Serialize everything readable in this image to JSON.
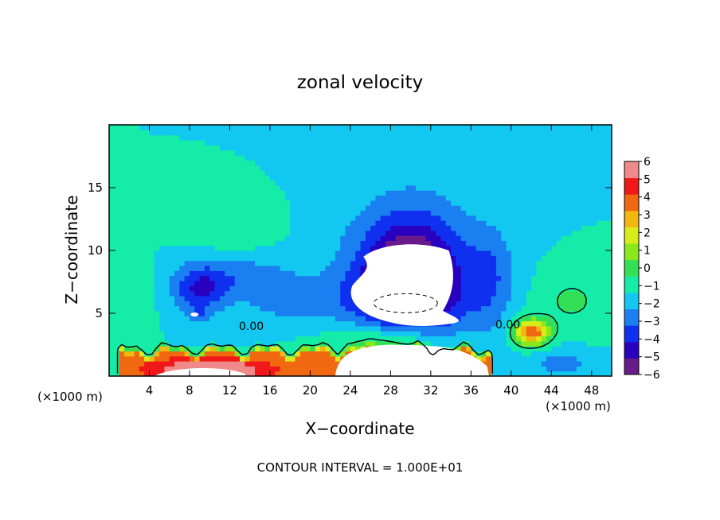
{
  "chart_data": {
    "type": "heatmap",
    "title": "zonal velocity",
    "xlabel": "X−coordinate",
    "ylabel": "Z−coordinate",
    "x_unit": "(×1000 m)",
    "y_unit": "(×1000 m)",
    "xlim": [
      0,
      50
    ],
    "ylim": [
      0,
      20
    ],
    "xticks": [
      4,
      8,
      12,
      16,
      20,
      24,
      28,
      32,
      36,
      40,
      44,
      48
    ],
    "yticks": [
      5,
      10,
      15
    ],
    "contour_labels": [
      "0.00",
      "0.00"
    ],
    "contour_interval_text": "CONTOUR INTERVAL = 1.000E+01",
    "colorbar": {
      "levels": [
        -6,
        -5,
        -4,
        -3,
        -2,
        -1,
        0,
        1,
        2,
        3,
        4,
        5,
        6
      ],
      "tick_labels": [
        "6",
        "5",
        "4",
        "3",
        "2",
        "1",
        "0",
        "−1",
        "−2",
        "−3",
        "−4",
        "−5",
        "−6"
      ],
      "colors": [
        "#6a1b8a",
        "#2a00c0",
        "#1030f0",
        "#1a7ff0",
        "#12c8f0",
        "#14eca8",
        "#33e055",
        "#88e81a",
        "#d8ec1a",
        "#f0b810",
        "#f06810",
        "#f01818",
        "#f08a8a"
      ]
    },
    "fields": [
      {
        "kind": "background",
        "value": -1.0
      },
      {
        "kind": "blob",
        "x": 30,
        "z": 7.5,
        "rx": 8.5,
        "rz": 7.5,
        "value": -3.0
      },
      {
        "kind": "blob",
        "x": 30,
        "z": 9.0,
        "rx": 6.0,
        "rz": 6.0,
        "value": -2.0
      },
      {
        "kind": "blob",
        "x": 30,
        "z": 8.0,
        "rx": 3.5,
        "rz": 3.0,
        "value": -3.0
      },
      {
        "kind": "blob",
        "x": 29,
        "z": 6.5,
        "rx": 7.0,
        "rz": 3.0,
        "value": -1.5
      },
      {
        "kind": "blob",
        "x": 9,
        "z": 7.0,
        "rx": 3.5,
        "rz": 2.5,
        "value": -3.0
      },
      {
        "kind": "blob",
        "x": 9,
        "z": 5.0,
        "rx": 1.2,
        "rz": 0.8,
        "value": -1.0
      },
      {
        "kind": "blob",
        "x": 14,
        "z": 8.0,
        "rx": 6.0,
        "rz": 2.0,
        "value": -1.5
      },
      {
        "kind": "blob",
        "x": 18,
        "z": 6.0,
        "rx": 6.0,
        "rz": 2.0,
        "value": -1.5
      },
      {
        "kind": "blob",
        "x": 12,
        "z": 12.0,
        "rx": 5.0,
        "rz": 2.5,
        "value": 0.8
      },
      {
        "kind": "blob",
        "x": 46,
        "z": 6.0,
        "rx": 4.5,
        "rz": 3.0,
        "value": 1.2
      },
      {
        "kind": "blob",
        "x": 42,
        "z": 3.5,
        "rx": 2.2,
        "rz": 1.3,
        "value": 6.0
      },
      {
        "kind": "blob",
        "x": 45,
        "z": 1.0,
        "rx": 4.0,
        "rz": 1.5,
        "value": -1.5
      },
      {
        "kind": "blob",
        "x": 2,
        "z": 6.0,
        "rx": 2.5,
        "rz": 4.0,
        "value": 0.8
      },
      {
        "kind": "blob",
        "x": 38,
        "z": 8.0,
        "rx": 3.0,
        "rz": 5.0,
        "value": -1.5
      },
      {
        "kind": "surface",
        "x0": 1,
        "x1": 38,
        "top": 2.3,
        "value": 5.5
      },
      {
        "kind": "blob",
        "x": 28,
        "z": 2.5,
        "rx": 7.0,
        "rz": 2.0,
        "value": 3.0
      },
      {
        "kind": "blob",
        "x": 10,
        "z": 0.5,
        "rx": 6.0,
        "rz": 1.0,
        "value": 4.0
      }
    ]
  }
}
